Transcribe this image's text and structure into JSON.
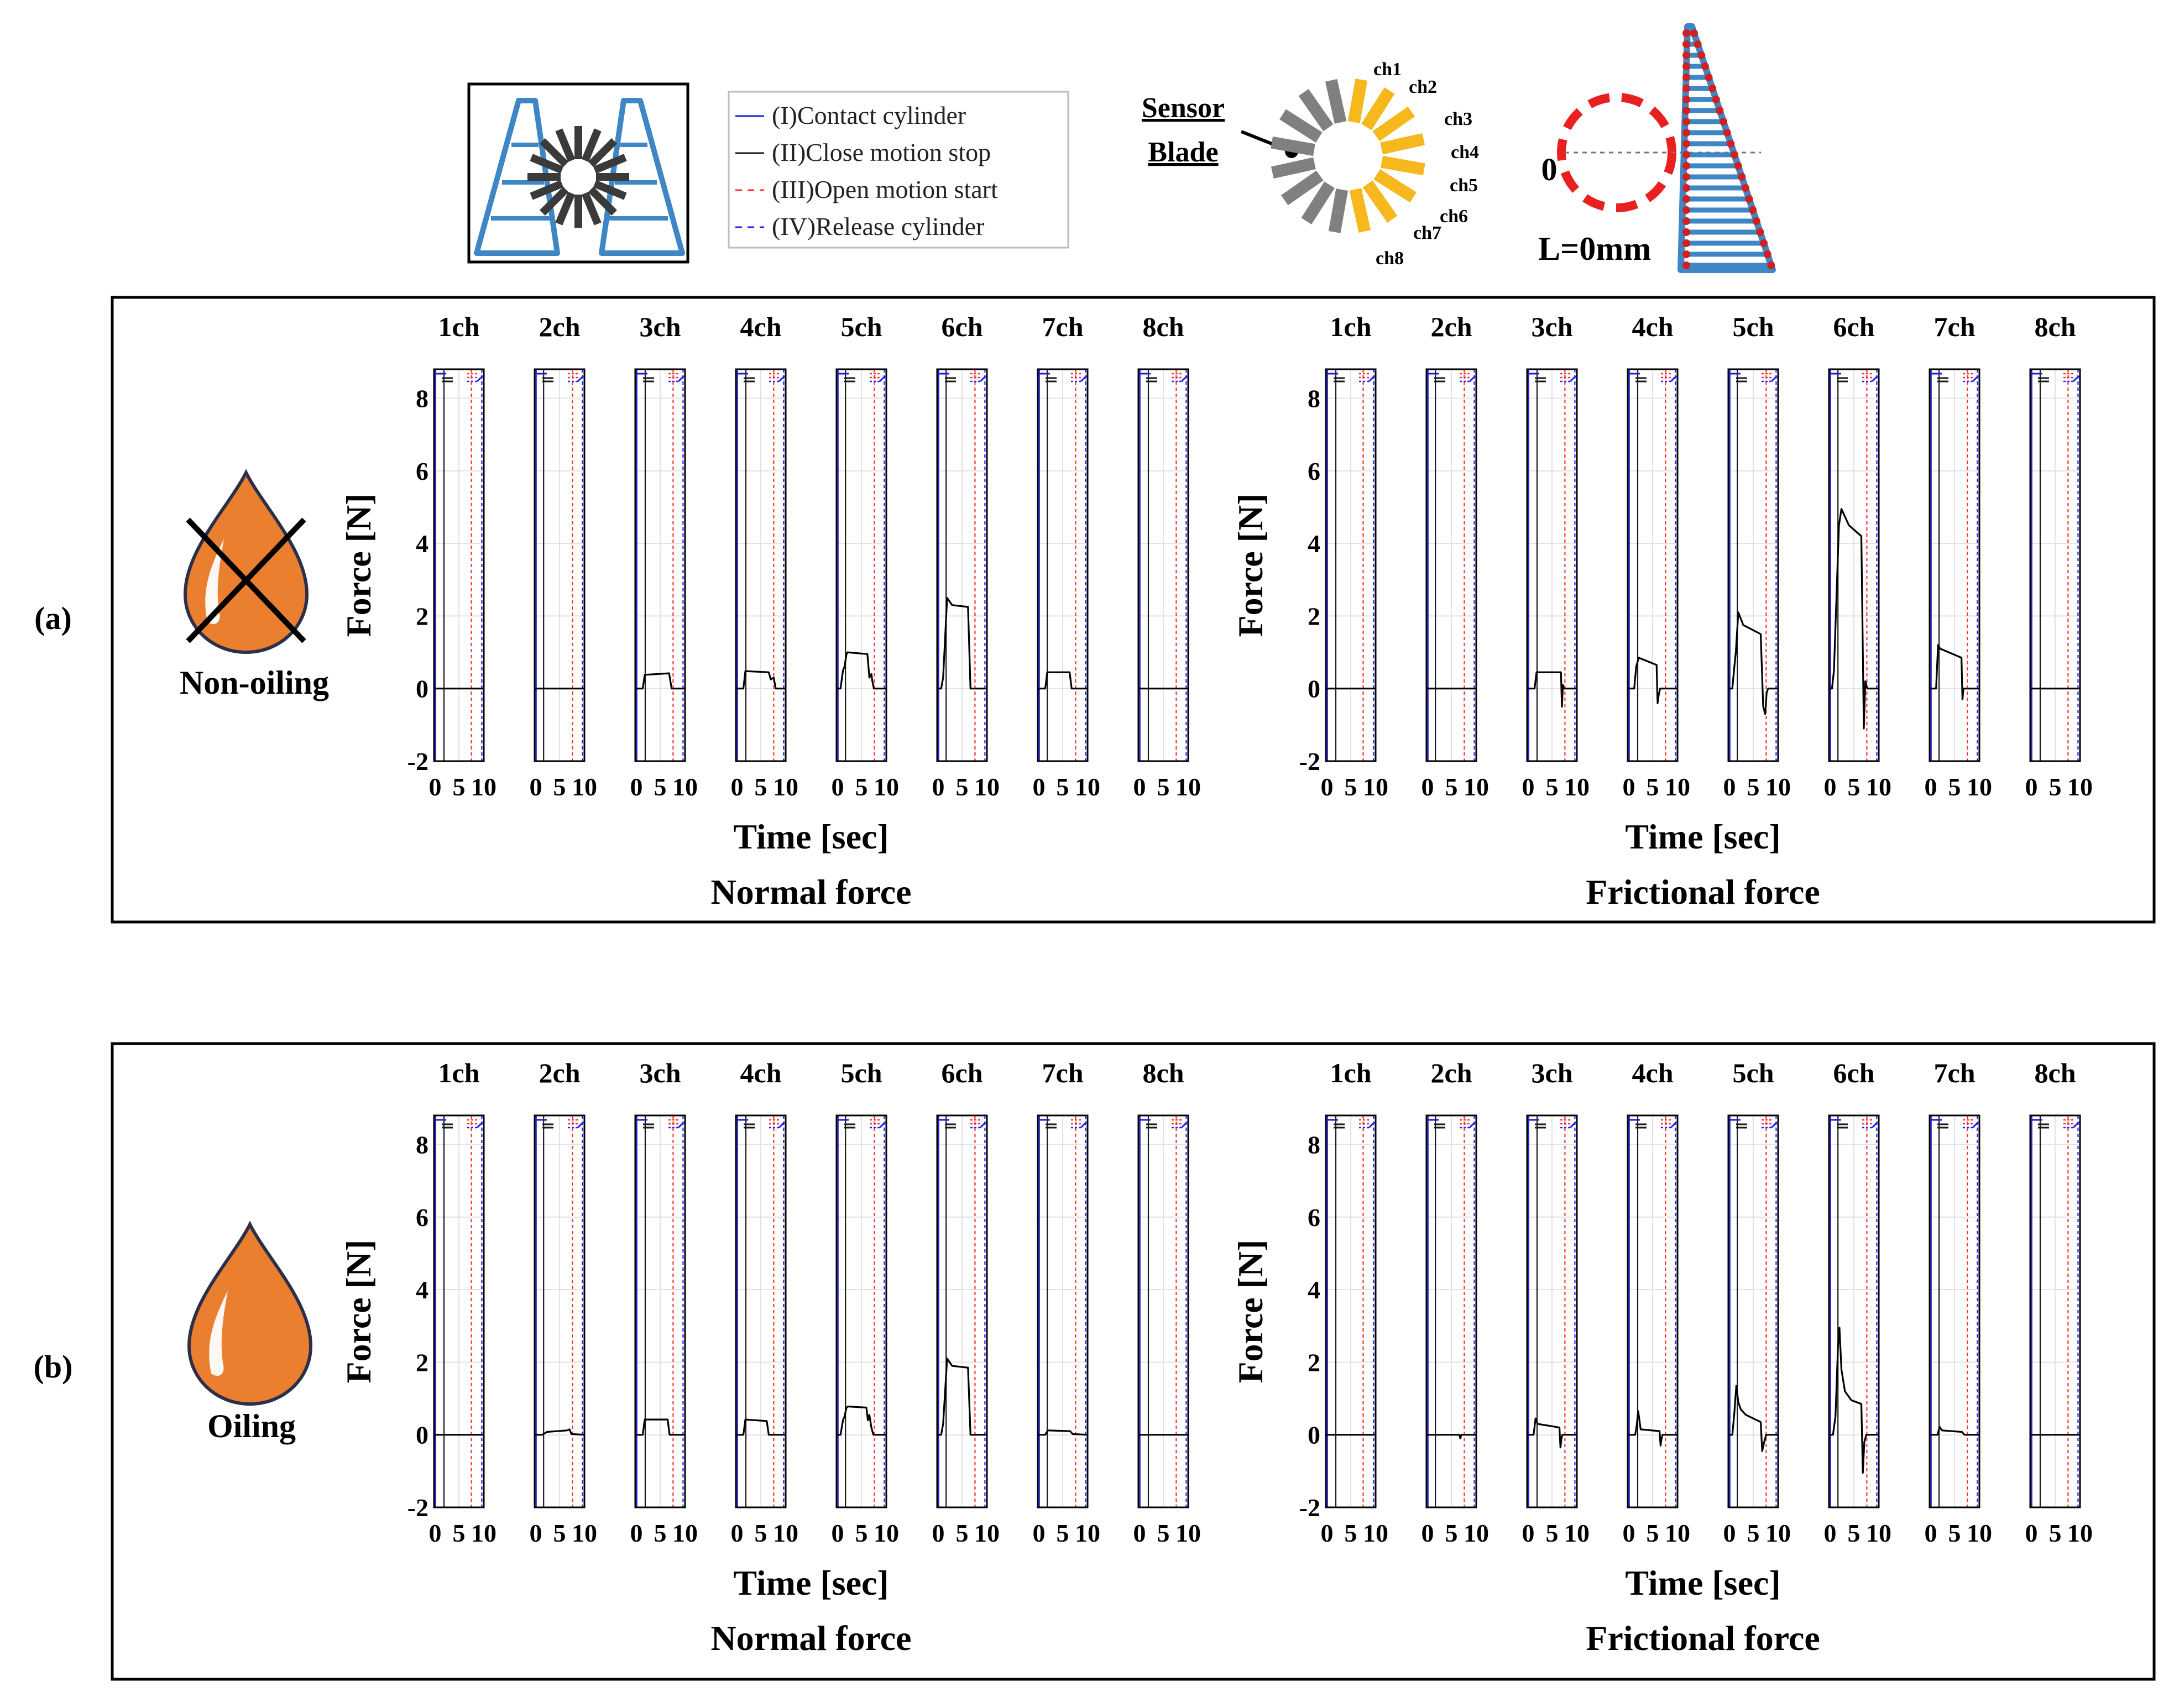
{
  "colors": {
    "contact": "#1f1fd6",
    "close_stop": "#1a1a1a",
    "open_start": "#ff3030",
    "release": "#2020ff",
    "signal": "#000000",
    "oil": "#ea7f2f",
    "blade_yellow": "#f6b81c",
    "blade_gray": "#808080",
    "frame_blue": "#3f86c4"
  },
  "legend": {
    "items": [
      {
        "label": "(I)Contact cylinder",
        "style": "solid",
        "color_key": "contact"
      },
      {
        "label": "(II)Close motion stop",
        "style": "solid",
        "color_key": "close_stop"
      },
      {
        "label": "(III)Open motion start",
        "style": "dashed",
        "color_key": "open_start"
      },
      {
        "label": "(IV)Release cylinder",
        "style": "dashed",
        "color_key": "release"
      }
    ]
  },
  "sensor_diagram": {
    "label_line1": "Sensor",
    "label_line2": "Blade",
    "channels": [
      "ch1",
      "ch2",
      "ch3",
      "ch4",
      "ch5",
      "ch6",
      "ch7",
      "ch8"
    ]
  },
  "position_diagram": {
    "zero_label": "0",
    "length_label": "L=0mm"
  },
  "rows": [
    {
      "label": "(a)",
      "condition": "Non-oiling",
      "crossed": true
    },
    {
      "label": "(b)",
      "condition": "Oiling",
      "crossed": false
    }
  ],
  "chart_data": {
    "type": "line",
    "xlabel": "Time [sec]",
    "ylabel": "Force [N]",
    "xlim": [
      0,
      10
    ],
    "ylim": [
      -2,
      8.8
    ],
    "x_ticks": [
      0,
      5,
      10
    ],
    "x_tick_labels": [
      "0",
      "5",
      "10"
    ],
    "y_ticks": [
      -2,
      0,
      2,
      4,
      6,
      8
    ],
    "y_tick_labels": [
      "-2",
      "0",
      "2",
      "4",
      "6",
      "8"
    ],
    "grid": true,
    "channels": [
      "1ch",
      "2ch",
      "3ch",
      "4ch",
      "5ch",
      "6ch",
      "7ch",
      "8ch"
    ],
    "event_times": {
      "contact": 0.3,
      "close_stop": 2.0,
      "open_start": 7.8,
      "release": 9.6
    },
    "event_times_by_channel": {
      "contact": [
        0.3,
        0.3,
        0.3,
        0.3,
        0.3,
        0.3,
        0.3,
        0.3
      ],
      "close_stop": [
        2.0,
        1.8,
        2.0,
        2.0,
        1.8,
        1.8,
        1.9,
        2.0
      ],
      "open_start": [
        7.5,
        7.6,
        7.6,
        7.6,
        7.6,
        7.6,
        7.6,
        7.6
      ],
      "release": [
        9.6,
        9.6,
        9.6,
        9.6,
        9.6,
        9.6,
        9.6,
        9.6
      ]
    },
    "panel_groups": [
      {
        "id": "a-normal",
        "row": 0,
        "title": "Normal force",
        "series": [
          {
            "name": "1ch",
            "x": [
              0,
              10
            ],
            "y": [
              0,
              0
            ]
          },
          {
            "name": "2ch",
            "x": [
              0,
              10
            ],
            "y": [
              0,
              0
            ]
          },
          {
            "name": "3ch",
            "x": [
              0,
              1.5,
              1.9,
              6.8,
              7.3,
              10
            ],
            "y": [
              0,
              0,
              0.38,
              0.42,
              0,
              0
            ]
          },
          {
            "name": "4ch",
            "x": [
              0,
              1.5,
              1.9,
              6.6,
              7.0,
              7.6,
              8.0,
              10
            ],
            "y": [
              0,
              0,
              0.48,
              0.45,
              0.25,
              0.3,
              0,
              0
            ]
          },
          {
            "name": "5ch",
            "x": [
              0,
              0.8,
              1.3,
              1.6,
              2.0,
              2.2,
              6.2,
              6.6,
              7.0,
              7.2,
              7.5,
              10
            ],
            "y": [
              0,
              0,
              0.5,
              0.6,
              0.95,
              1.0,
              0.95,
              0.3,
              0.4,
              0.2,
              0,
              0
            ]
          },
          {
            "name": "6ch",
            "x": [
              0,
              0.8,
              1.2,
              2.0,
              3.0,
              6.2,
              6.7,
              10
            ],
            "y": [
              0,
              0,
              0.3,
              2.5,
              2.3,
              2.25,
              0,
              0
            ]
          },
          {
            "name": "7ch",
            "x": [
              0,
              1.5,
              1.9,
              6.4,
              6.8,
              10
            ],
            "y": [
              0,
              0,
              0.45,
              0.45,
              0,
              0
            ]
          },
          {
            "name": "8ch",
            "x": [
              0,
              10
            ],
            "y": [
              0,
              0
            ]
          }
        ]
      },
      {
        "id": "a-friction",
        "row": 0,
        "title": "Frictional force",
        "series": [
          {
            "name": "1ch",
            "x": [
              0,
              10
            ],
            "y": [
              0,
              0
            ]
          },
          {
            "name": "2ch",
            "x": [
              0,
              10
            ],
            "y": [
              0,
              0
            ]
          },
          {
            "name": "3ch",
            "x": [
              0,
              1.5,
              1.9,
              6.8,
              7.0,
              7.2,
              7.4,
              10
            ],
            "y": [
              0,
              0,
              0.45,
              0.45,
              -0.5,
              0.1,
              0,
              0
            ]
          },
          {
            "name": "4ch",
            "x": [
              0,
              1.3,
              1.7,
              2.2,
              5.8,
              6.0,
              6.2,
              6.5,
              10
            ],
            "y": [
              0,
              0,
              0.6,
              0.85,
              0.65,
              -0.4,
              -0.2,
              0,
              0
            ]
          },
          {
            "name": "5ch",
            "x": [
              0,
              0.8,
              1.2,
              1.5,
              2.0,
              3.0,
              6.5,
              7.0,
              7.4,
              7.7,
              8.0,
              10
            ],
            "y": [
              0,
              0,
              0.6,
              1.0,
              2.1,
              1.75,
              1.5,
              -0.5,
              -0.7,
              -0.1,
              0,
              0
            ]
          },
          {
            "name": "6ch",
            "x": [
              0,
              0.6,
              1.0,
              2.0,
              2.5,
              4.0,
              6.5,
              7.0,
              7.3,
              7.7,
              10
            ],
            "y": [
              0,
              0,
              0.5,
              4.5,
              4.95,
              4.5,
              4.2,
              -1.1,
              0.2,
              0,
              0
            ]
          },
          {
            "name": "7ch",
            "x": [
              0,
              1.3,
              1.7,
              2.1,
              6.4,
              6.6,
              6.8,
              10
            ],
            "y": [
              0,
              0,
              1.2,
              1.1,
              0.85,
              -0.3,
              0,
              0
            ]
          },
          {
            "name": "8ch",
            "x": [
              0,
              10
            ],
            "y": [
              0,
              0
            ]
          }
        ]
      },
      {
        "id": "b-normal",
        "row": 1,
        "title": "Normal force",
        "series": [
          {
            "name": "1ch",
            "x": [
              0,
              10
            ],
            "y": [
              0,
              0
            ]
          },
          {
            "name": "2ch",
            "x": [
              0,
              1.5,
              2.5,
              6.5,
              7.0,
              7.4,
              10
            ],
            "y": [
              0,
              0,
              0.08,
              0.12,
              0.15,
              0.02,
              0
            ]
          },
          {
            "name": "3ch",
            "x": [
              0,
              1.5,
              1.9,
              6.5,
              6.9,
              10
            ],
            "y": [
              0,
              0,
              0.42,
              0.42,
              0,
              0
            ]
          },
          {
            "name": "4ch",
            "x": [
              0,
              1.5,
              1.9,
              6.2,
              6.6,
              10
            ],
            "y": [
              0,
              0,
              0.42,
              0.38,
              0,
              0
            ]
          },
          {
            "name": "5ch",
            "x": [
              0,
              0.8,
              1.3,
              1.6,
              2.0,
              2.3,
              6.0,
              6.3,
              6.6,
              7.0,
              7.4,
              10
            ],
            "y": [
              0,
              0,
              0.4,
              0.5,
              0.75,
              0.78,
              0.75,
              0.4,
              0.55,
              0.2,
              0,
              0
            ]
          },
          {
            "name": "6ch",
            "x": [
              0,
              0.8,
              1.2,
              2.0,
              3.0,
              6.2,
              6.7,
              10
            ],
            "y": [
              0,
              0,
              0.3,
              2.1,
              1.9,
              1.85,
              0,
              0
            ]
          },
          {
            "name": "7ch",
            "x": [
              0,
              1.5,
              2.0,
              6.5,
              7.0,
              10
            ],
            "y": [
              0,
              0,
              0.12,
              0.1,
              0.02,
              0
            ]
          },
          {
            "name": "8ch",
            "x": [
              0,
              10
            ],
            "y": [
              0,
              0
            ]
          }
        ]
      },
      {
        "id": "b-friction",
        "row": 1,
        "title": "Frictional force",
        "series": [
          {
            "name": "1ch",
            "x": [
              0,
              10
            ],
            "y": [
              0,
              0
            ]
          },
          {
            "name": "2ch",
            "x": [
              0,
              6.6,
              6.8,
              7.0,
              10
            ],
            "y": [
              0,
              0,
              -0.1,
              0,
              0
            ]
          },
          {
            "name": "3ch",
            "x": [
              0,
              1.3,
              1.7,
              2.1,
              6.5,
              6.7,
              6.9,
              7.1,
              10
            ],
            "y": [
              0,
              0,
              0.45,
              0.3,
              0.2,
              -0.35,
              -0.1,
              0,
              0
            ]
          },
          {
            "name": "4ch",
            "x": [
              0,
              1.5,
              1.8,
              2.1,
              2.6,
              6.4,
              6.6,
              6.8,
              7.0,
              10
            ],
            "y": [
              0,
              0,
              0.25,
              0.65,
              0.15,
              0.1,
              -0.3,
              -0.1,
              0,
              0
            ]
          },
          {
            "name": "5ch",
            "x": [
              0,
              0.8,
              1.2,
              1.6,
              2.0,
              2.5,
              3.5,
              6.5,
              6.8,
              7.2,
              7.6,
              10
            ],
            "y": [
              0,
              0,
              0.6,
              1.35,
              0.9,
              0.7,
              0.55,
              0.35,
              -0.45,
              -0.2,
              0,
              0
            ]
          },
          {
            "name": "6ch",
            "x": [
              0,
              0.8,
              1.3,
              1.8,
              2.1,
              2.5,
              3.2,
              4.5,
              6.5,
              6.8,
              7.1,
              7.5,
              10
            ],
            "y": [
              0,
              0,
              0.5,
              2.4,
              2.95,
              1.8,
              1.2,
              0.95,
              0.85,
              -1.05,
              -0.2,
              0,
              0
            ]
          },
          {
            "name": "7ch",
            "x": [
              0,
              1.6,
              2.0,
              2.5,
              6.5,
              7.0,
              10
            ],
            "y": [
              0,
              0,
              0.22,
              0.12,
              0.08,
              0,
              0
            ]
          },
          {
            "name": "8ch",
            "x": [
              0,
              10
            ],
            "y": [
              0,
              0
            ]
          }
        ]
      }
    ]
  }
}
